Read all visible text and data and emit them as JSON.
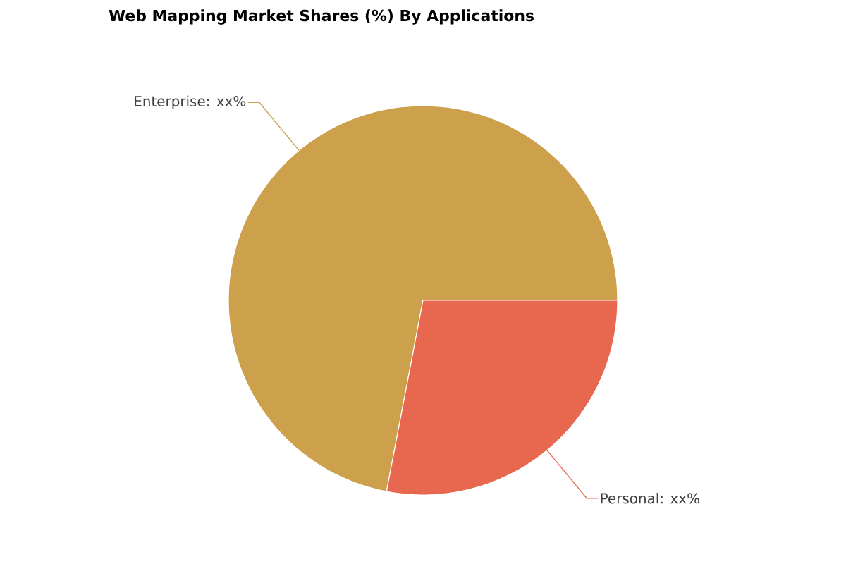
{
  "chart_data": {
    "type": "pie",
    "title": "Web Mapping Market Shares (%) By Applications",
    "categories": [
      "Enterprise: xx%",
      "Personal: xx%"
    ],
    "values": [
      72,
      28
    ],
    "colors": [
      "#cda04b",
      "#e8674f"
    ]
  }
}
